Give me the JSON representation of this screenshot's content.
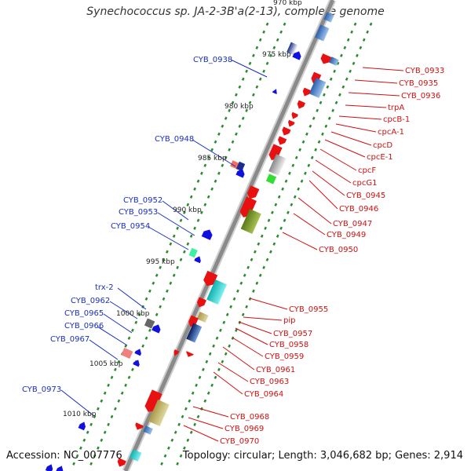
{
  "title": "Synechococcus sp. JA-2-3B'a(2-13), complete genome",
  "footer": {
    "accession": "Accession: NC_007776",
    "summary": "Topology: circular; Length: 3,046,682 bp; Genes: 2,914"
  },
  "colors": {
    "backbone": "#8a8a8a",
    "tick_dots": "#2a8a2a",
    "left_labels": "#1a2fc0",
    "right_labels": "#d01010",
    "forward_genes": "#e81010",
    "reverse_genes": "#1010e0"
  },
  "scale_ticks": [
    "970 kbp",
    "975 kbp",
    "980 kbp",
    "985 kbp",
    "990 kbp",
    "995 kbp",
    "1000 kbp",
    "1005 kbp",
    "1010 kbp"
  ],
  "left_labels": [
    "CYB_0938",
    "CYB_0948",
    "CYB_0952",
    "CYB_0953",
    "CYB_0954",
    "trx-2",
    "CYB_0962",
    "CYB_0965",
    "CYB_0966",
    "CYB_0967",
    "CYB_0973"
  ],
  "right_labels": [
    "CYB_0933",
    "CYB_0935",
    "CYB_0936",
    "trpA",
    "cpcB-1",
    "cpcA-1",
    "cpcD",
    "cpcE-1",
    "cpcF",
    "cpcG1",
    "CYB_0945",
    "CYB_0946",
    "CYB_0947",
    "CYB_0949",
    "CYB_0950",
    "CYB_0955",
    "pip",
    "CYB_0957",
    "CYB_0958",
    "CYB_0959",
    "CYB_0961",
    "CYB_0963",
    "CYB_0964",
    "CYB_0968",
    "CYB_0969",
    "CYB_0970"
  ]
}
